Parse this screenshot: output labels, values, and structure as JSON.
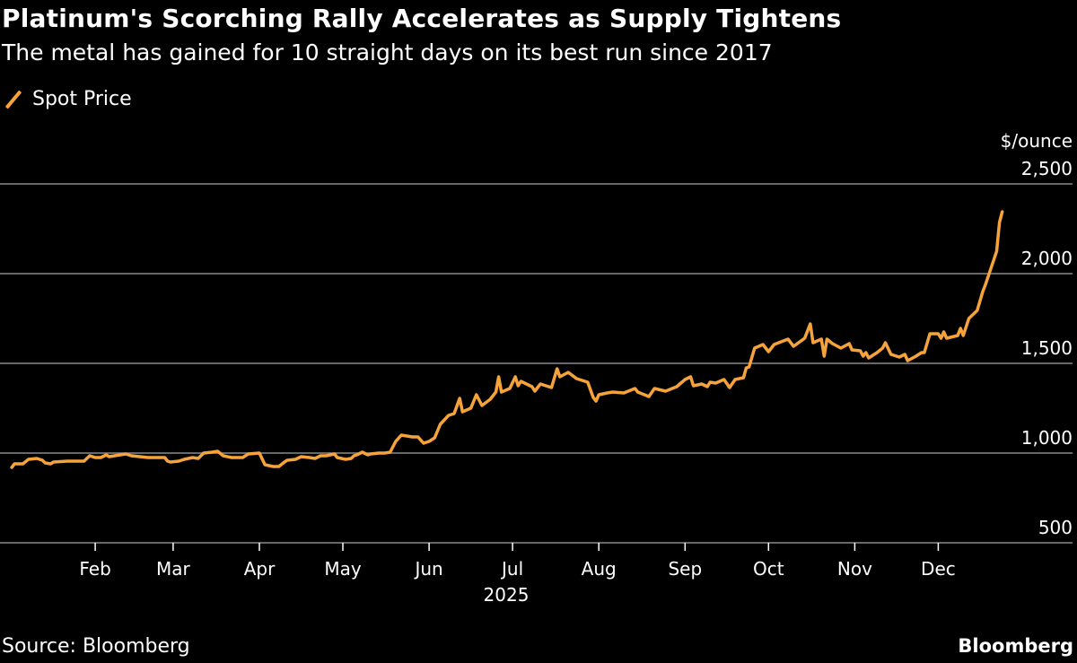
{
  "title": "Platinum's Scorching Rally Accelerates as Supply Tightens",
  "subtitle": "The metal has gained for 10 straight days on its best run since 2017",
  "source": "Source: Bloomberg",
  "brand": "Bloomberg",
  "colors": {
    "series": "#f5a33a",
    "grid": "#8a8a8a",
    "background": "#000000"
  },
  "chart_data": {
    "type": "line",
    "title": "Platinum's Scorching Rally Accelerates as Supply Tightens",
    "subtitle": "The metal has gained for 10 straight days on its best run since 2017",
    "ylabel": "$/ounce",
    "ylim": [
      500,
      2500
    ],
    "yticks": [
      500,
      1000,
      1500,
      2000,
      2500
    ],
    "ytick_labels": [
      "500",
      "1,000",
      "1,500",
      "2,000",
      "2,500"
    ],
    "xlim": [
      "2025-01-01",
      "2025-12-31"
    ],
    "xticks": [
      {
        "date": "2025-02-01",
        "label": "Feb"
      },
      {
        "date": "2025-03-01",
        "label": "Mar"
      },
      {
        "date": "2025-04-01",
        "label": "Apr"
      },
      {
        "date": "2025-05-01",
        "label": "May"
      },
      {
        "date": "2025-06-01",
        "label": "Jun"
      },
      {
        "date": "2025-07-01",
        "label": "Jul"
      },
      {
        "date": "2025-08-01",
        "label": "Aug"
      },
      {
        "date": "2025-09-01",
        "label": "Sep"
      },
      {
        "date": "2025-10-01",
        "label": "Oct"
      },
      {
        "date": "2025-11-01",
        "label": "Nov"
      },
      {
        "date": "2025-12-01",
        "label": "Dec"
      }
    ],
    "year_label": "2025",
    "grid": "horizontal",
    "legend_placement": "top-left",
    "series": [
      {
        "name": "Spot Price",
        "color": "#f5a33a",
        "points": [
          [
            "2025-01-02",
            920
          ],
          [
            "2025-01-03",
            940
          ],
          [
            "2025-01-06",
            940
          ],
          [
            "2025-01-08",
            965
          ],
          [
            "2025-01-11",
            970
          ],
          [
            "2025-01-13",
            960
          ],
          [
            "2025-01-14",
            945
          ],
          [
            "2025-01-16",
            940
          ],
          [
            "2025-01-17",
            950
          ],
          [
            "2025-01-22",
            955
          ],
          [
            "2025-01-28",
            955
          ],
          [
            "2025-01-30",
            985
          ],
          [
            "2025-02-01",
            975
          ],
          [
            "2025-02-03",
            975
          ],
          [
            "2025-02-05",
            990
          ],
          [
            "2025-02-06",
            980
          ],
          [
            "2025-02-08",
            985
          ],
          [
            "2025-02-10",
            990
          ],
          [
            "2025-02-12",
            995
          ],
          [
            "2025-02-14",
            985
          ],
          [
            "2025-02-17",
            980
          ],
          [
            "2025-02-20",
            975
          ],
          [
            "2025-02-26",
            975
          ],
          [
            "2025-02-27",
            955
          ],
          [
            "2025-02-28",
            950
          ],
          [
            "2025-03-03",
            955
          ],
          [
            "2025-03-05",
            965
          ],
          [
            "2025-03-08",
            975
          ],
          [
            "2025-03-10",
            970
          ],
          [
            "2025-03-12",
            1000
          ],
          [
            "2025-03-15",
            1005
          ],
          [
            "2025-03-17",
            1010
          ],
          [
            "2025-03-19",
            985
          ],
          [
            "2025-03-22",
            975
          ],
          [
            "2025-03-26",
            975
          ],
          [
            "2025-03-28",
            995
          ],
          [
            "2025-04-01",
            1000
          ],
          [
            "2025-04-03",
            935
          ],
          [
            "2025-04-06",
            925
          ],
          [
            "2025-04-08",
            925
          ],
          [
            "2025-04-10",
            950
          ],
          [
            "2025-04-11",
            960
          ],
          [
            "2025-04-14",
            965
          ],
          [
            "2025-04-16",
            980
          ],
          [
            "2025-04-19",
            975
          ],
          [
            "2025-04-21",
            970
          ],
          [
            "2025-04-23",
            985
          ],
          [
            "2025-04-25",
            985
          ],
          [
            "2025-04-28",
            995
          ],
          [
            "2025-04-29",
            975
          ],
          [
            "2025-05-02",
            965
          ],
          [
            "2025-05-04",
            970
          ],
          [
            "2025-05-05",
            985
          ],
          [
            "2025-05-06",
            990
          ],
          [
            "2025-05-08",
            1005
          ],
          [
            "2025-05-10",
            990
          ],
          [
            "2025-05-11",
            995
          ],
          [
            "2025-05-14",
            1000
          ],
          [
            "2025-05-16",
            1000
          ],
          [
            "2025-05-18",
            1005
          ],
          [
            "2025-05-20",
            1065
          ],
          [
            "2025-05-22",
            1100
          ],
          [
            "2025-05-26",
            1090
          ],
          [
            "2025-05-28",
            1090
          ],
          [
            "2025-05-30",
            1055
          ],
          [
            "2025-06-01",
            1065
          ],
          [
            "2025-06-03",
            1085
          ],
          [
            "2025-06-05",
            1160
          ],
          [
            "2025-06-08",
            1210
          ],
          [
            "2025-06-10",
            1220
          ],
          [
            "2025-06-12",
            1305
          ],
          [
            "2025-06-13",
            1230
          ],
          [
            "2025-06-16",
            1250
          ],
          [
            "2025-06-18",
            1325
          ],
          [
            "2025-06-20",
            1265
          ],
          [
            "2025-06-23",
            1300
          ],
          [
            "2025-06-25",
            1340
          ],
          [
            "2025-06-26",
            1425
          ],
          [
            "2025-06-27",
            1340
          ],
          [
            "2025-06-30",
            1360
          ],
          [
            "2025-07-02",
            1425
          ],
          [
            "2025-07-03",
            1375
          ],
          [
            "2025-07-04",
            1400
          ],
          [
            "2025-07-08",
            1370
          ],
          [
            "2025-07-09",
            1345
          ],
          [
            "2025-07-11",
            1385
          ],
          [
            "2025-07-15",
            1365
          ],
          [
            "2025-07-17",
            1470
          ],
          [
            "2025-07-18",
            1425
          ],
          [
            "2025-07-21",
            1450
          ],
          [
            "2025-07-24",
            1415
          ],
          [
            "2025-07-28",
            1395
          ],
          [
            "2025-07-30",
            1310
          ],
          [
            "2025-07-31",
            1290
          ],
          [
            "2025-08-01",
            1325
          ],
          [
            "2025-08-04",
            1335
          ],
          [
            "2025-08-06",
            1340
          ],
          [
            "2025-08-10",
            1335
          ],
          [
            "2025-08-14",
            1360
          ],
          [
            "2025-08-15",
            1340
          ],
          [
            "2025-08-19",
            1315
          ],
          [
            "2025-08-21",
            1360
          ],
          [
            "2025-08-25",
            1345
          ],
          [
            "2025-08-29",
            1370
          ],
          [
            "2025-09-01",
            1410
          ],
          [
            "2025-09-03",
            1425
          ],
          [
            "2025-09-04",
            1375
          ],
          [
            "2025-09-07",
            1385
          ],
          [
            "2025-09-09",
            1370
          ],
          [
            "2025-09-10",
            1395
          ],
          [
            "2025-09-12",
            1390
          ],
          [
            "2025-09-15",
            1410
          ],
          [
            "2025-09-17",
            1365
          ],
          [
            "2025-09-19",
            1410
          ],
          [
            "2025-09-22",
            1420
          ],
          [
            "2025-09-23",
            1475
          ],
          [
            "2025-09-24",
            1480
          ],
          [
            "2025-09-26",
            1585
          ],
          [
            "2025-09-29",
            1605
          ],
          [
            "2025-10-01",
            1565
          ],
          [
            "2025-10-03",
            1605
          ],
          [
            "2025-10-08",
            1635
          ],
          [
            "2025-10-10",
            1595
          ],
          [
            "2025-10-14",
            1640
          ],
          [
            "2025-10-16",
            1720
          ],
          [
            "2025-10-17",
            1615
          ],
          [
            "2025-10-20",
            1635
          ],
          [
            "2025-10-21",
            1540
          ],
          [
            "2025-10-22",
            1635
          ],
          [
            "2025-10-24",
            1610
          ],
          [
            "2025-10-27",
            1585
          ],
          [
            "2025-10-30",
            1610
          ],
          [
            "2025-10-31",
            1575
          ],
          [
            "2025-11-03",
            1570
          ],
          [
            "2025-11-04",
            1540
          ],
          [
            "2025-11-05",
            1560
          ],
          [
            "2025-11-06",
            1530
          ],
          [
            "2025-11-09",
            1560
          ],
          [
            "2025-11-11",
            1585
          ],
          [
            "2025-11-12",
            1615
          ],
          [
            "2025-11-14",
            1550
          ],
          [
            "2025-11-17",
            1535
          ],
          [
            "2025-11-19",
            1550
          ],
          [
            "2025-11-20",
            1515
          ],
          [
            "2025-11-23",
            1540
          ],
          [
            "2025-11-25",
            1560
          ],
          [
            "2025-11-26",
            1560
          ],
          [
            "2025-11-28",
            1665
          ],
          [
            "2025-12-01",
            1665
          ],
          [
            "2025-12-02",
            1640
          ],
          [
            "2025-12-03",
            1675
          ],
          [
            "2025-12-04",
            1640
          ],
          [
            "2025-12-08",
            1655
          ],
          [
            "2025-12-09",
            1695
          ],
          [
            "2025-12-10",
            1655
          ],
          [
            "2025-12-12",
            1750
          ],
          [
            "2025-12-15",
            1795
          ],
          [
            "2025-12-17",
            1900
          ],
          [
            "2025-12-18",
            1940
          ],
          [
            "2025-12-22",
            2125
          ],
          [
            "2025-12-23",
            2285
          ],
          [
            "2025-12-24",
            2345
          ]
        ]
      }
    ]
  }
}
